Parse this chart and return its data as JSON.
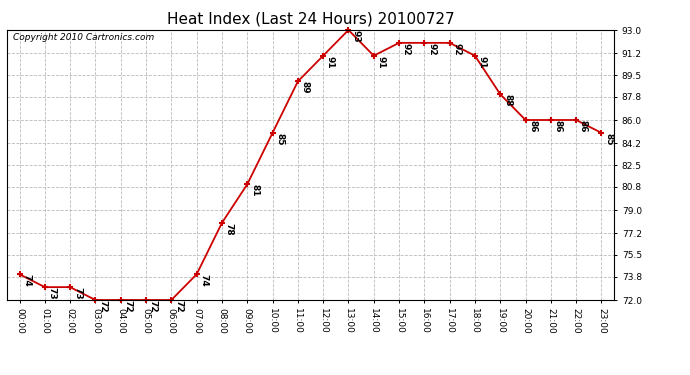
{
  "title": "Heat Index (Last 24 Hours) 20100727",
  "copyright": "Copyright 2010 Cartronics.com",
  "hours": [
    0,
    1,
    2,
    3,
    4,
    5,
    6,
    7,
    8,
    9,
    10,
    11,
    12,
    13,
    14,
    15,
    16,
    17,
    18,
    19,
    20,
    21,
    22,
    23
  ],
  "x_labels": [
    "00:00",
    "01:00",
    "02:00",
    "03:00",
    "04:00",
    "05:00",
    "06:00",
    "07:00",
    "08:00",
    "09:00",
    "10:00",
    "11:00",
    "12:00",
    "13:00",
    "14:00",
    "15:00",
    "16:00",
    "17:00",
    "18:00",
    "19:00",
    "20:00",
    "21:00",
    "22:00",
    "23:00"
  ],
  "values": [
    74,
    73,
    73,
    72,
    72,
    72,
    72,
    74,
    78,
    81,
    85,
    89,
    91,
    93,
    91,
    92,
    92,
    92,
    91,
    88,
    86,
    86,
    86,
    85
  ],
  "line_color": "#cc0000",
  "marker": "+",
  "marker_color": "#cc0000",
  "bg_color": "#ffffff",
  "grid_color": "#bbbbbb",
  "ylim_min": 72.0,
  "ylim_max": 93.0,
  "yticks": [
    72.0,
    73.8,
    75.5,
    77.2,
    79.0,
    80.8,
    82.5,
    84.2,
    86.0,
    87.8,
    89.5,
    91.2,
    93.0
  ],
  "title_fontsize": 11,
  "label_fontsize": 6.5,
  "annotation_fontsize": 6.5,
  "copyright_fontsize": 6.5,
  "border_color": "#000000"
}
